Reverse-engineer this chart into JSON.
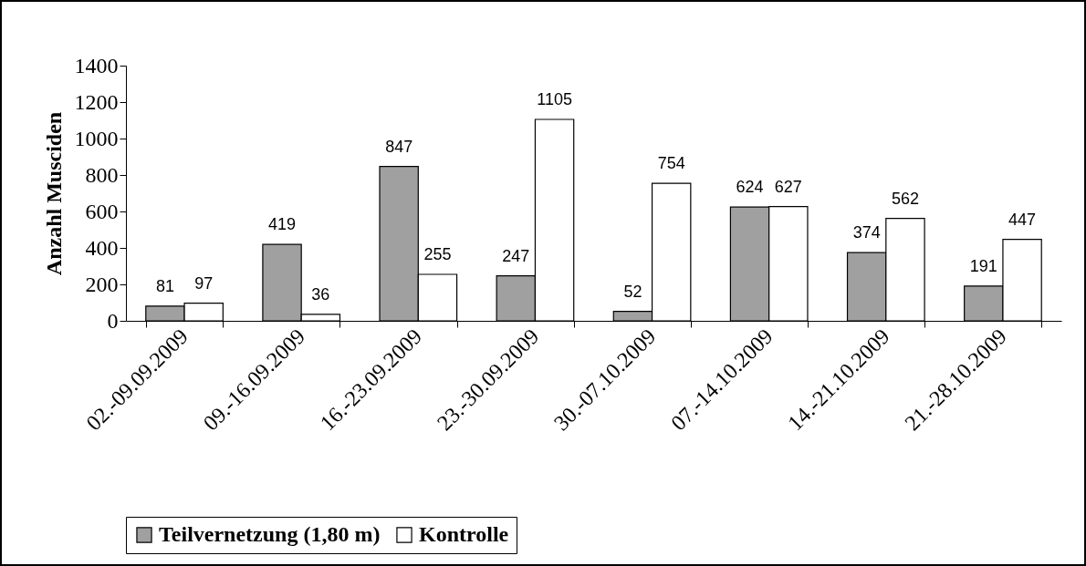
{
  "chart_data": {
    "type": "bar",
    "ylabel": "Anzahl Musciden",
    "categories": [
      "02.-09.09.2009",
      "09.-16.09.2009",
      "16.-23.09.2009",
      "23.-30.09.2009",
      "30.-07.10.2009",
      "07.-14.10.2009",
      "14.-21.10.2009",
      "21.-28.10.2009"
    ],
    "series": [
      {
        "name": "Teilvernetzung (1,80 m)",
        "color": "#a0a0a0",
        "values": [
          81,
          419,
          847,
          247,
          52,
          624,
          374,
          191
        ]
      },
      {
        "name": "Kontrolle",
        "color": "#ffffff",
        "values": [
          97,
          36,
          255,
          1105,
          754,
          627,
          562,
          447
        ]
      }
    ],
    "ylim": [
      0,
      1400
    ],
    "yticks": [
      0,
      200,
      400,
      600,
      800,
      1000,
      1200,
      1400
    ],
    "data_labels": true,
    "legend": "bottom",
    "grid": false
  }
}
